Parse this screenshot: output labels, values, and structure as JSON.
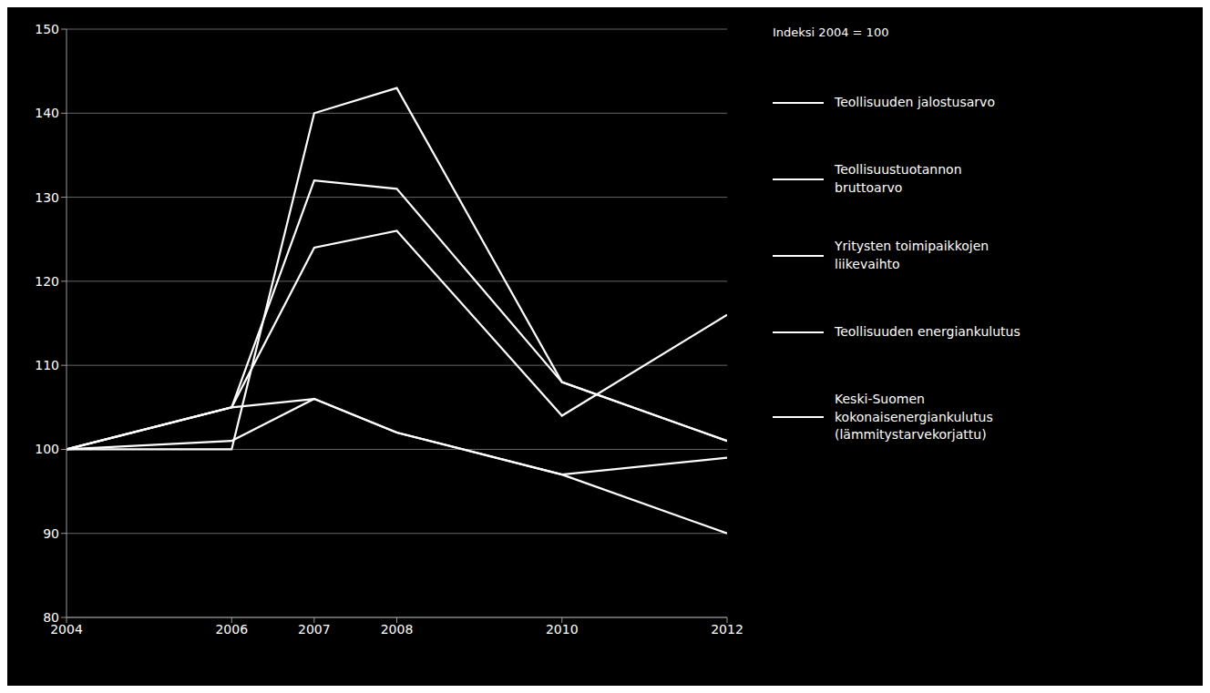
{
  "chart_data": {
    "type": "line",
    "annotation": "Indeksi 2004 = 100",
    "x": [
      2004,
      2006,
      2007,
      2008,
      2010,
      2012
    ],
    "series": [
      {
        "name": "Teollisuuden jalostusarvo",
        "values": [
          100,
          100,
          140,
          143,
          108,
          101
        ]
      },
      {
        "name": "Teollisuustuotannon\nbruttoarvo",
        "values": [
          100,
          105,
          132,
          131,
          108,
          101
        ]
      },
      {
        "name": "Yritysten toimipaikkojen\nliikevaihto",
        "values": [
          100,
          105,
          124,
          126,
          104,
          116
        ]
      },
      {
        "name": "Teollisuuden energiankulutus",
        "values": [
          100,
          105,
          106,
          102,
          97,
          99
        ]
      },
      {
        "name": "Keski-Suomen\nkokonaisenergiankulutus\n(lämmitystarvekorjattu)",
        "values": [
          100,
          101,
          106,
          102,
          97,
          90
        ]
      }
    ],
    "color": "#ffffff",
    "xlim": [
      2004,
      2012
    ],
    "xticks": [
      2004,
      2006,
      2007,
      2008,
      2010,
      2012
    ],
    "ylim": [
      80,
      150
    ],
    "yticks": [
      80,
      90,
      100,
      110,
      120,
      130,
      140,
      150
    ],
    "grid": "y",
    "legend": "right"
  }
}
